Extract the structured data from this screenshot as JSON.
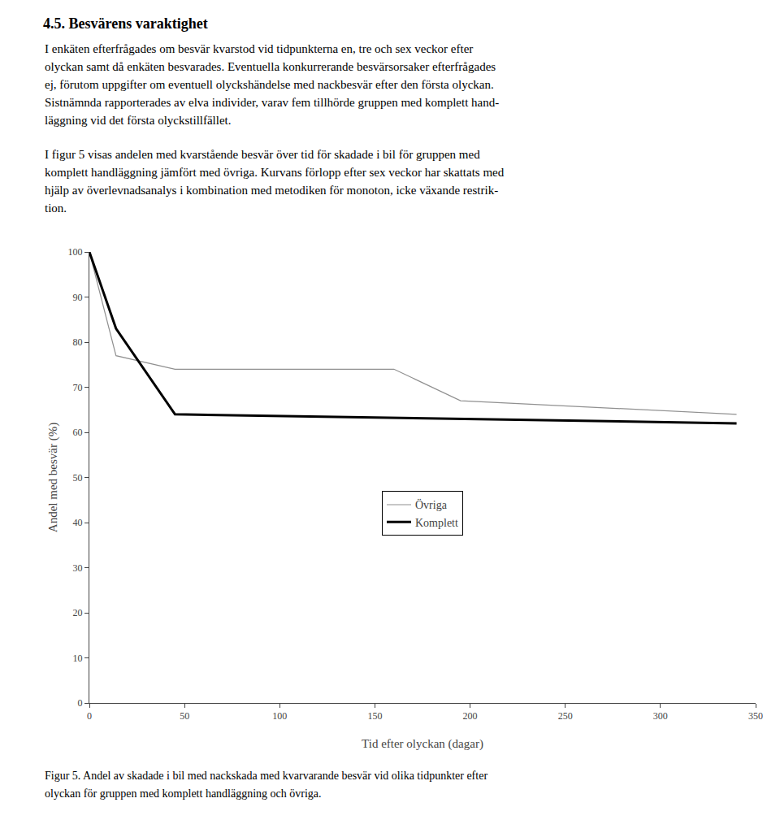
{
  "chart_data": {
    "type": "line",
    "title": "4.5. Besvärens varaktighet",
    "annotations": [
      [
        "I enkäten efterfrågades om besvär kvarstod vid tidpunkterna en, tre och sex veckor efter",
        "olyckan samt då enkäten besvarades. Eventuella konkurrerande besvärsorsaker efterfrågades",
        "ej, förutom uppgifter om eventuell olyckshändelse med nackbesvär efter den första olyckan.",
        "Sistnämnda rapporterades av elva individer, varav fem tillhörde gruppen med komplett hand-",
        "läggning vid det första olyckstillfället."
      ],
      [
        "I figur 5 visas andelen med kvarstående besvär över tid för skadade i bil för gruppen med",
        "komplett handläggning jämfört med övriga. Kurvans förlopp efter sex veckor har skattats med",
        "hjälp av överlevnadsanalys i kombination med metodiken för monoton, icke växande restrik-",
        "tion."
      ]
    ],
    "caption": [
      "Figur 5. Andel av skadade i bil med nackskada med kvarvarande besvär vid olika tidpunkter efter",
      "olyckan för gruppen med komplett handläggning och övriga."
    ],
    "xlabel": "Tid efter olyckan (dagar)",
    "ylabel": "Andel med besvär (%)",
    "series": [
      {
        "name": "Övriga",
        "color": "#909090",
        "x": [
          0,
          14,
          45,
          160,
          195,
          340
        ],
        "values": [
          100,
          77,
          74,
          74,
          67,
          64
        ]
      },
      {
        "name": "Komplett",
        "color": "#000000",
        "x": [
          0,
          14,
          45,
          340
        ],
        "values": [
          100,
          83,
          64,
          62
        ]
      }
    ],
    "xlim": [
      0,
      350
    ],
    "ylim": [
      0,
      100
    ],
    "xticks": [
      0,
      50,
      100,
      150,
      200,
      250,
      300,
      350
    ],
    "yticks": [
      0,
      10,
      20,
      30,
      40,
      50,
      60,
      70,
      80,
      90,
      100
    ],
    "grid": false,
    "legend": "center"
  }
}
